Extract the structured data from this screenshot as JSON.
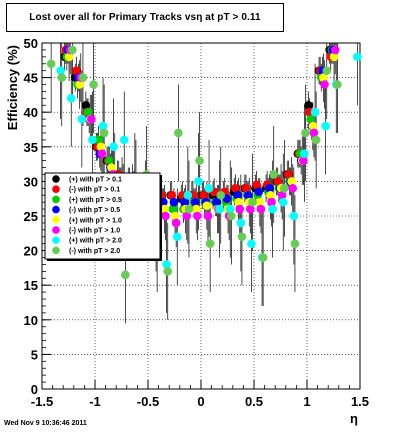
{
  "header": {
    "title": "Lost over all for Primary Tracks vsη at pT > 0.11",
    "timestamp": "Wed Nov  9 10:36:46 2011"
  },
  "chart_data": {
    "type": "scatter",
    "xlabel": "η",
    "ylabel": "Efficiency (%)",
    "xlim": [
      -1.5,
      1.5
    ],
    "ylim": [
      0,
      50
    ],
    "x_ticks": [
      -1.5,
      -1,
      -0.5,
      0,
      0.5,
      1,
      1.5
    ],
    "x_tick_labels": [
      "-1.5",
      "-1",
      "-0.5",
      "0",
      "0.5",
      "1",
      "1.5"
    ],
    "y_ticks": [
      0,
      5,
      10,
      15,
      20,
      25,
      30,
      35,
      40,
      45,
      50
    ],
    "y_tick_labels": [
      "0",
      "5",
      "10",
      "15",
      "20",
      "25",
      "30",
      "35",
      "40",
      "45",
      "50"
    ],
    "grid": true,
    "legend_position": "left-middle",
    "x": [
      -1.45,
      -1.35,
      -1.25,
      -1.15,
      -1.05,
      -0.95,
      -0.85,
      -0.75,
      -0.65,
      -0.55,
      -0.45,
      -0.35,
      -0.25,
      -0.15,
      -0.05,
      0.05,
      0.15,
      0.25,
      0.35,
      0.45,
      0.55,
      0.65,
      0.75,
      0.85,
      0.95,
      1.05,
      1.15,
      1.25,
      1.35,
      1.45
    ],
    "series": [
      {
        "name": "(+) with pT > 0.1",
        "color": "#000000",
        "values": [
          null,
          null,
          48,
          45,
          41,
          35,
          33,
          31,
          30,
          29,
          28.5,
          28,
          28,
          27.5,
          28,
          28,
          28,
          28,
          28.5,
          29,
          29,
          29,
          30,
          31,
          34,
          41,
          46,
          49,
          null,
          null
        ]
      },
      {
        "name": "(-) with pT > 0.1",
        "color": "#ff0000",
        "values": [
          null,
          null,
          49,
          46,
          40,
          35,
          33,
          31,
          30,
          29,
          29,
          28,
          28,
          28,
          28,
          28,
          28.5,
          28.5,
          29,
          29,
          29.5,
          29.5,
          30,
          31,
          34,
          40,
          46,
          48,
          null,
          null
        ]
      },
      {
        "name": "(+) with pT > 0.5",
        "color": "#00cc00",
        "values": [
          null,
          null,
          48,
          44,
          40,
          36,
          33,
          30,
          29,
          28,
          27,
          27,
          26,
          26,
          27,
          27,
          27,
          27,
          27.5,
          28,
          28,
          28.5,
          29,
          30,
          34,
          39,
          45,
          49,
          null,
          null
        ]
      },
      {
        "name": "(-) with pT > 0.5",
        "color": "#0000ff",
        "values": [
          null,
          null,
          49,
          45,
          39,
          34,
          32,
          30,
          29,
          28,
          28,
          27,
          27,
          27,
          27,
          27,
          27,
          27.5,
          28,
          28,
          28.5,
          29,
          29,
          30,
          33,
          38,
          46,
          49,
          null,
          null
        ]
      },
      {
        "name": "(+) with pT > 1.0",
        "color": "#ffff00",
        "values": [
          null,
          null,
          48,
          44,
          39,
          35,
          32,
          30,
          29,
          27,
          26,
          26,
          25,
          26,
          26,
          26.5,
          26,
          26,
          27,
          27,
          27,
          28,
          29,
          30,
          33,
          38,
          45,
          48,
          null,
          null
        ]
      },
      {
        "name": "(-) with pT > 1.0",
        "color": "#ff00ff",
        "values": [
          null,
          null,
          49,
          45,
          39,
          34,
          31,
          29,
          28,
          27,
          26,
          25,
          24,
          25,
          25,
          25,
          26,
          25,
          26,
          26,
          26,
          27,
          28,
          29,
          33,
          37,
          44,
          49,
          null,
          null
        ]
      },
      {
        "name": "(+) with pT > 2.0",
        "color": "#00ffff",
        "values": [
          null,
          46,
          42,
          39,
          36,
          38,
          35,
          36,
          30,
          26,
          24,
          18,
          22,
          28,
          30,
          29,
          26,
          26,
          24,
          21,
          19,
          26,
          27,
          25,
          34,
          40,
          38,
          44,
          null,
          48
        ]
      },
      {
        "name": "(-) with pT > 2.0",
        "color": "#66cc55",
        "values": [
          47,
          45,
          49,
          45,
          44,
          37,
          30,
          16.5,
          29,
          31,
          21,
          17,
          37,
          26,
          33,
          21,
          28,
          25,
          22,
          27,
          19,
          31,
          29,
          21,
          37,
          36,
          46,
          44,
          null,
          null
        ]
      }
    ]
  }
}
